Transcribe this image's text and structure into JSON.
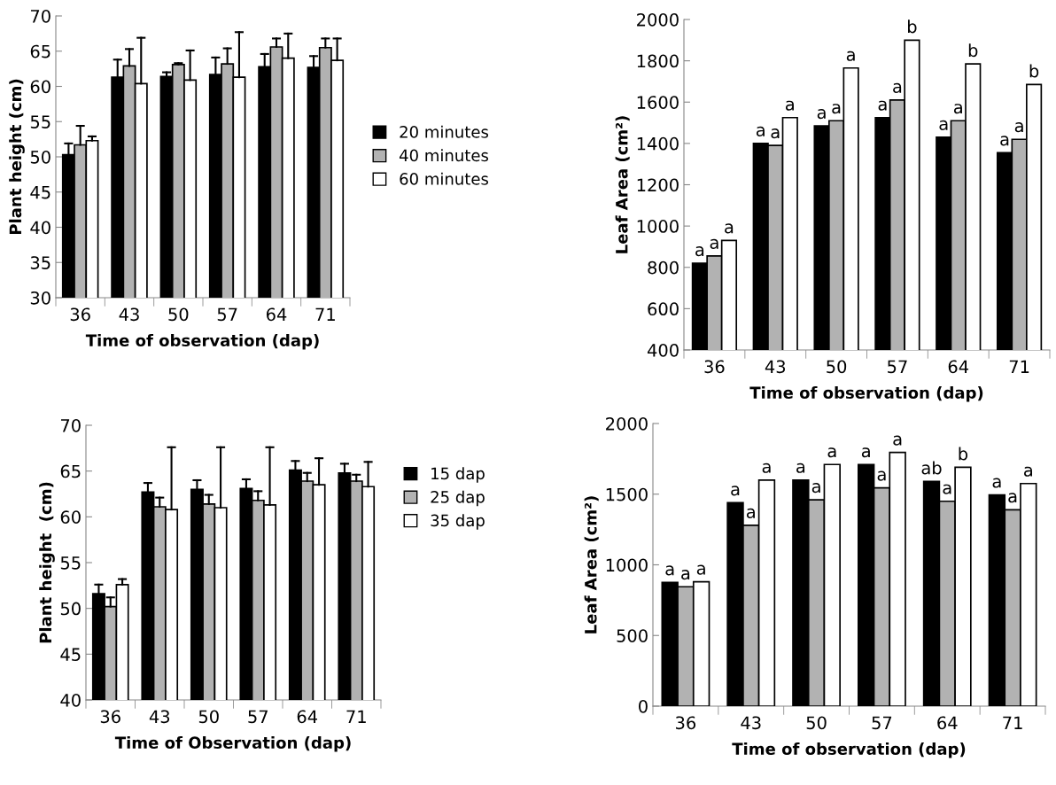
{
  "chart_data": [
    {
      "type": "bar",
      "xlabel": "Time of observation (dap)",
      "ylabel": "Plant height (cm)",
      "categories": [
        "36",
        "43",
        "50",
        "57",
        "64",
        "71"
      ],
      "ylim": [
        30,
        70
      ],
      "yticks": [
        30,
        35,
        40,
        45,
        50,
        55,
        60,
        65,
        70
      ],
      "grid": false,
      "legend": "right",
      "series": [
        {
          "name": "20 minutes",
          "color": "#000000",
          "values": [
            50.3,
            61.3,
            61.4,
            61.7,
            62.8,
            62.7
          ],
          "errors": [
            [
              50.3,
              51.9
            ],
            [
              61.3,
              63.8
            ],
            [
              61.4,
              62.0
            ],
            [
              61.7,
              64.1
            ],
            [
              62.8,
              64.6
            ],
            [
              62.7,
              64.3
            ]
          ]
        },
        {
          "name": "40 minutes",
          "color": "#b2b2b2",
          "values": [
            51.7,
            62.9,
            63.1,
            63.2,
            65.6,
            65.5
          ],
          "errors": [
            [
              51.7,
              54.4
            ],
            [
              62.9,
              65.3
            ],
            [
              63.1,
              63.3
            ],
            [
              63.2,
              65.4
            ],
            [
              65.6,
              66.8
            ],
            [
              65.5,
              66.8
            ]
          ]
        },
        {
          "name": "60 minutes",
          "color": "#ffffff",
          "values": [
            52.3,
            60.4,
            60.9,
            61.3,
            64.0,
            63.7
          ],
          "errors": [
            [
              52.3,
              52.9
            ],
            [
              60.4,
              66.9
            ],
            [
              60.9,
              65.1
            ],
            [
              61.3,
              67.7
            ],
            [
              64.0,
              67.5
            ],
            [
              63.7,
              66.8
            ]
          ]
        }
      ]
    },
    {
      "type": "bar",
      "xlabel": "Time of observation (dap)",
      "ylabel": "Leaf Area (cm²)",
      "categories": [
        "36",
        "43",
        "50",
        "57",
        "64",
        "71"
      ],
      "ylim": [
        400,
        2000
      ],
      "yticks": [
        400,
        600,
        800,
        1000,
        1200,
        1400,
        1600,
        1800,
        2000
      ],
      "grid": false,
      "legend": false,
      "series": [
        {
          "color": "#000000",
          "values": [
            820,
            1400,
            1485,
            1525,
            1430,
            1355
          ],
          "value_labels": [
            "a",
            "a",
            "a",
            "a",
            "a",
            "a"
          ]
        },
        {
          "color": "#b2b2b2",
          "values": [
            855,
            1390,
            1510,
            1610,
            1510,
            1420
          ],
          "value_labels": [
            "a",
            "a",
            "a",
            "a",
            "a",
            "a"
          ]
        },
        {
          "color": "#ffffff",
          "values": [
            930,
            1525,
            1765,
            1900,
            1785,
            1685
          ],
          "value_labels": [
            "a",
            "a",
            "a",
            "b",
            "b",
            "b"
          ]
        }
      ]
    },
    {
      "type": "bar",
      "xlabel": "Time of Observation (dap)",
      "ylabel": "Plant height  (cm)",
      "categories": [
        "36",
        "43",
        "50",
        "57",
        "64",
        "71"
      ],
      "ylim": [
        40,
        70
      ],
      "yticks": [
        40,
        45,
        50,
        55,
        60,
        65,
        70
      ],
      "grid": false,
      "legend": "top right",
      "series": [
        {
          "name": "15 dap",
          "color": "#000000",
          "values": [
            51.6,
            62.7,
            63.0,
            63.1,
            65.1,
            64.8
          ],
          "errors": [
            [
              51.6,
              52.6
            ],
            [
              62.7,
              63.7
            ],
            [
              63.0,
              64.0
            ],
            [
              63.1,
              64.1
            ],
            [
              65.1,
              66.1
            ],
            [
              64.8,
              65.8
            ]
          ]
        },
        {
          "name": "25 dap",
          "color": "#b2b2b2",
          "values": [
            50.2,
            61.1,
            61.4,
            61.8,
            63.9,
            63.9
          ],
          "errors": [
            [
              50.2,
              51.2
            ],
            [
              61.1,
              62.1
            ],
            [
              61.4,
              62.4
            ],
            [
              61.8,
              62.8
            ],
            [
              63.9,
              64.8
            ],
            [
              63.9,
              64.6
            ]
          ]
        },
        {
          "name": "35 dap",
          "color": "#ffffff",
          "values": [
            52.6,
            60.8,
            61.0,
            61.3,
            63.5,
            63.3
          ],
          "errors": [
            [
              52.6,
              53.2
            ],
            [
              60.8,
              67.6
            ],
            [
              61.0,
              67.6
            ],
            [
              61.3,
              67.6
            ],
            [
              63.5,
              66.4
            ],
            [
              63.3,
              66.0
            ]
          ]
        }
      ]
    },
    {
      "type": "bar",
      "xlabel": "Time of observation (dap)",
      "ylabel": "Leaf Area (cm²)",
      "categories": [
        "36",
        "43",
        "50",
        "57",
        "64",
        "71"
      ],
      "ylim": [
        0,
        2000
      ],
      "yticks": [
        0,
        500,
        1000,
        1500,
        2000
      ],
      "grid": false,
      "legend": false,
      "series": [
        {
          "color": "#000000",
          "values": [
            875,
            1440,
            1600,
            1710,
            1590,
            1495
          ],
          "value_labels": [
            "a",
            "a",
            "a",
            "a",
            "ab",
            "a"
          ]
        },
        {
          "color": "#b2b2b2",
          "values": [
            845,
            1280,
            1460,
            1545,
            1450,
            1390
          ],
          "value_labels": [
            "a",
            "a",
            "a",
            "a",
            "a",
            "a"
          ]
        },
        {
          "color": "#ffffff",
          "values": [
            880,
            1600,
            1710,
            1795,
            1690,
            1575
          ],
          "value_labels": [
            "a",
            "a",
            "a",
            "a",
            "b",
            "a"
          ]
        }
      ]
    }
  ]
}
